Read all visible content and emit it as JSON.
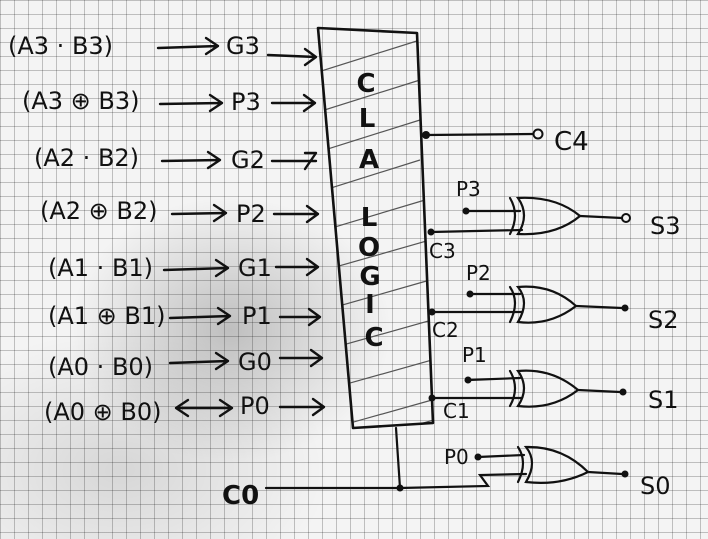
{
  "inputs": [
    {
      "expr": "(A3 · B3)",
      "signal": "G3"
    },
    {
      "expr": "(A3 ⊕ B3)",
      "signal": "P3"
    },
    {
      "expr": "(A2 · B2)",
      "signal": "G2"
    },
    {
      "expr": "(A2 ⊕ B2)",
      "signal": "P2"
    },
    {
      "expr": "(A1 · B1)",
      "signal": "G1"
    },
    {
      "expr": "(A1 ⊕ B1)",
      "signal": "P1"
    },
    {
      "expr": "(A0 · B0)",
      "signal": "G0"
    },
    {
      "expr": "(A0 ⊕ B0)",
      "signal": "P0"
    }
  ],
  "block_letters": [
    "C",
    "L",
    "A",
    "L",
    "O",
    "G",
    "I",
    "C"
  ],
  "carries": {
    "c4": "C4",
    "c3": "C3",
    "c2": "C2",
    "c1": "C1",
    "c0": "C0"
  },
  "xor_gates": [
    {
      "p": "P3",
      "s": "S3"
    },
    {
      "p": "P2",
      "s": "S2"
    },
    {
      "p": "P1",
      "s": "S1"
    },
    {
      "p": "P0",
      "s": "S0"
    }
  ]
}
